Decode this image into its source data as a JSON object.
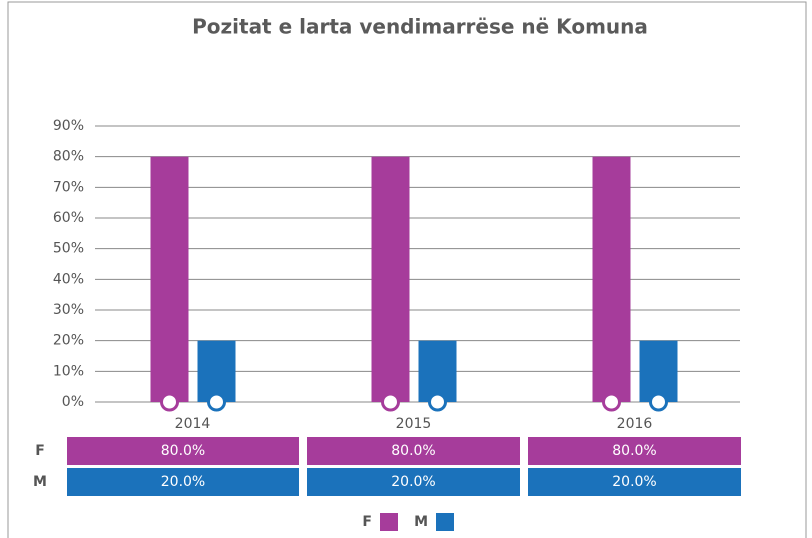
{
  "chart_data": {
    "type": "bar",
    "title": "Pozitat e larta vendimarrëse në Komuna",
    "categories": [
      "2014",
      "2015",
      "2016"
    ],
    "series": [
      {
        "name": "F",
        "color": "#a63c9b",
        "values": [
          80,
          80,
          80
        ],
        "value_labels": [
          "80.0%",
          "80.0%",
          "80.0%"
        ]
      },
      {
        "name": "M",
        "color": "#1b72bb",
        "values": [
          20,
          20,
          20
        ],
        "value_labels": [
          "20.0%",
          "20.0%",
          "20.0%"
        ]
      }
    ],
    "ylim": [
      0,
      90
    ],
    "yticks": [
      {
        "value": 0,
        "label": "0%"
      },
      {
        "value": 10,
        "label": "10%"
      },
      {
        "value": 20,
        "label": "20%"
      },
      {
        "value": 30,
        "label": "30%"
      },
      {
        "value": 40,
        "label": "40%"
      },
      {
        "value": 50,
        "label": "50%"
      },
      {
        "value": 60,
        "label": "60%"
      },
      {
        "value": 70,
        "label": "70%"
      },
      {
        "value": 80,
        "label": "80%"
      },
      {
        "value": 90,
        "label": "90%"
      }
    ],
    "grid": true,
    "legend": "bottom"
  }
}
